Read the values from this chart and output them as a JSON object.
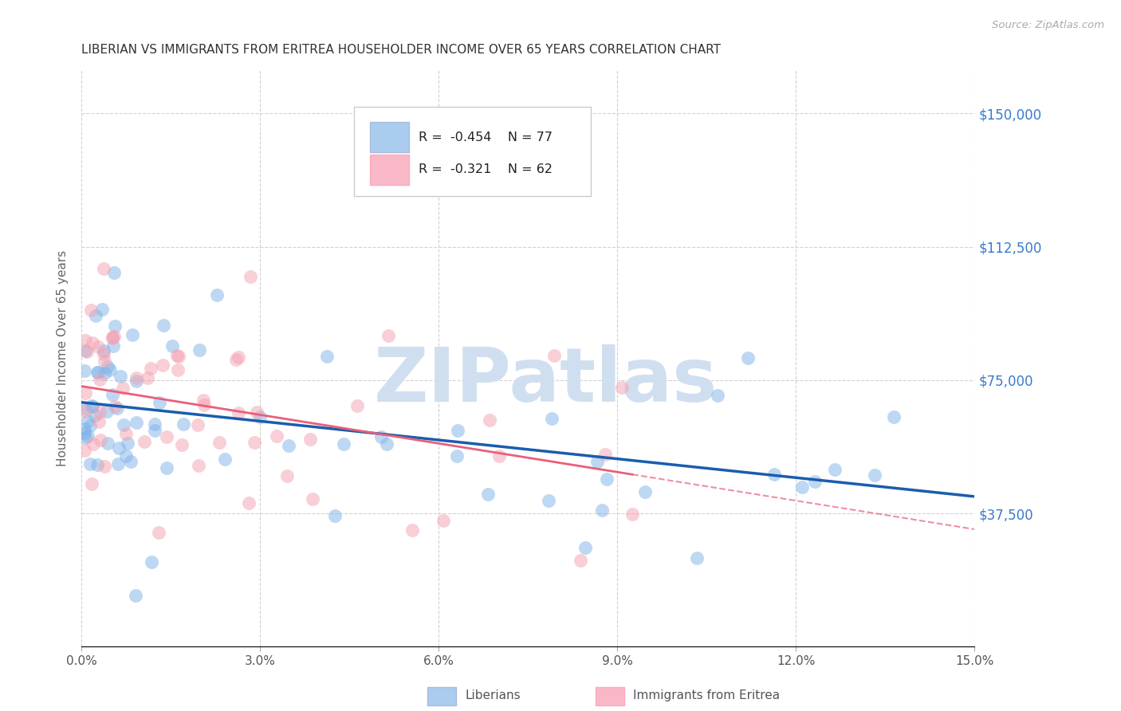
{
  "title": "LIBERIAN VS IMMIGRANTS FROM ERITREA HOUSEHOLDER INCOME OVER 65 YEARS CORRELATION CHART",
  "source": "Source: ZipAtlas.com",
  "ylabel": "Householder Income Over 65 years",
  "xlabel_ticks": [
    "0.0%",
    "3.0%",
    "6.0%",
    "9.0%",
    "12.0%",
    "15.0%"
  ],
  "xlabel_vals": [
    0.0,
    3.0,
    6.0,
    9.0,
    12.0,
    15.0
  ],
  "ytick_labels": [
    "$37,500",
    "$75,000",
    "$112,500",
    "$150,000"
  ],
  "ytick_vals": [
    37500,
    75000,
    112500,
    150000
  ],
  "ylim": [
    0,
    162500
  ],
  "xlim": [
    0,
    15.0
  ],
  "liberian_R": -0.454,
  "liberian_N": 77,
  "eritrea_R": -0.321,
  "eritrea_N": 62,
  "liberian_color": "#7EB3E8",
  "eritrea_color": "#F4A0B0",
  "liberian_line_color": "#1A5DAD",
  "eritrea_line_color": "#E8607A",
  "watermark": "ZIPatlas",
  "watermark_color": "#D0DFF0",
  "background_color": "#FFFFFF",
  "grid_color": "#CCCCCC",
  "title_color": "#333333",
  "source_color": "#AAAAAA",
  "axis_label_color": "#666666",
  "right_ytick_color": "#3A7ACC",
  "legend_box_color_liberian": "#AACCEE",
  "legend_box_color_eritrea": "#F8B8C8",
  "legend_R_color": "#CC2244",
  "legend_N_color": "#333333"
}
